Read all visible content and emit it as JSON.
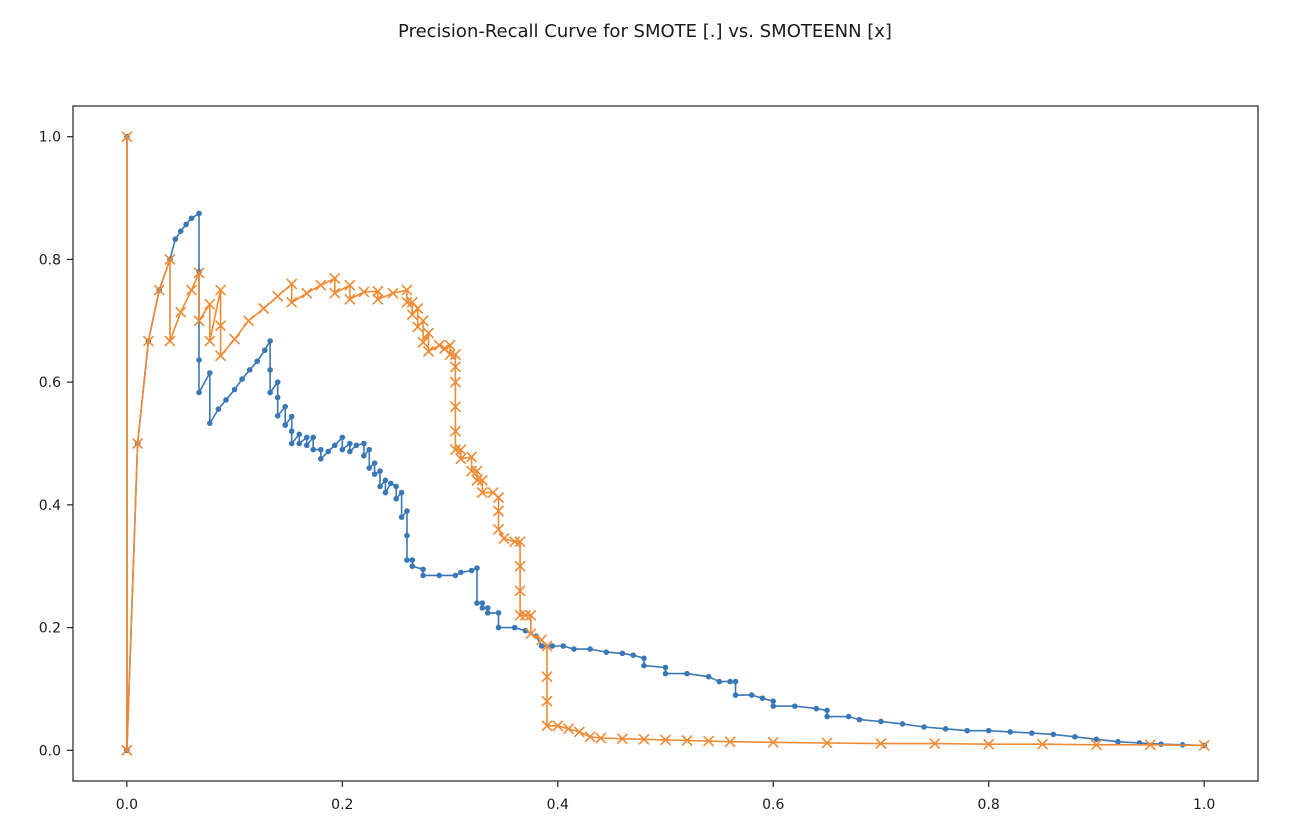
{
  "chart_data": {
    "type": "line",
    "title": "Precision-Recall Curve for SMOTE [.] vs. SMOTEENN [x]",
    "xlabel": "",
    "ylabel": "",
    "xlim": [
      -0.05,
      1.05
    ],
    "ylim": [
      -0.05,
      1.05
    ],
    "xticks": [
      0.0,
      0.2,
      0.4,
      0.6,
      0.8,
      1.0
    ],
    "xtick_labels": [
      "0.0",
      "0.2",
      "0.4",
      "0.6",
      "0.8",
      "1.0"
    ],
    "yticks": [
      0.0,
      0.2,
      0.4,
      0.6,
      0.8,
      1.0
    ],
    "ytick_labels": [
      "0.0",
      "0.2",
      "0.4",
      "0.6",
      "0.8",
      "1.0"
    ],
    "grid": false,
    "legend": "none",
    "series": [
      {
        "marker": "dot",
        "color": "#3a78b5",
        "points": [
          [
            0.0,
            0.0
          ],
          [
            0.0,
            1.0
          ],
          [
            0.0,
            0.0
          ],
          [
            0.01,
            0.5
          ],
          [
            0.02,
            0.667
          ],
          [
            0.03,
            0.75
          ],
          [
            0.04,
            0.8
          ],
          [
            0.045,
            0.833
          ],
          [
            0.05,
            0.846
          ],
          [
            0.055,
            0.857
          ],
          [
            0.06,
            0.867
          ],
          [
            0.067,
            0.875
          ],
          [
            0.067,
            0.78
          ],
          [
            0.067,
            0.636
          ],
          [
            0.067,
            0.583
          ],
          [
            0.077,
            0.615
          ],
          [
            0.077,
            0.533
          ],
          [
            0.085,
            0.556
          ],
          [
            0.092,
            0.571
          ],
          [
            0.1,
            0.588
          ],
          [
            0.107,
            0.605
          ],
          [
            0.114,
            0.62
          ],
          [
            0.121,
            0.634
          ],
          [
            0.128,
            0.652
          ],
          [
            0.133,
            0.667
          ],
          [
            0.133,
            0.62
          ],
          [
            0.133,
            0.583
          ],
          [
            0.14,
            0.6
          ],
          [
            0.14,
            0.575
          ],
          [
            0.14,
            0.545
          ],
          [
            0.147,
            0.56
          ],
          [
            0.147,
            0.53
          ],
          [
            0.153,
            0.544
          ],
          [
            0.153,
            0.52
          ],
          [
            0.153,
            0.5
          ],
          [
            0.16,
            0.515
          ],
          [
            0.16,
            0.5
          ],
          [
            0.167,
            0.51
          ],
          [
            0.167,
            0.497
          ],
          [
            0.173,
            0.51
          ],
          [
            0.173,
            0.49
          ],
          [
            0.18,
            0.49
          ],
          [
            0.18,
            0.475
          ],
          [
            0.187,
            0.487
          ],
          [
            0.193,
            0.497
          ],
          [
            0.2,
            0.51
          ],
          [
            0.2,
            0.49
          ],
          [
            0.207,
            0.5
          ],
          [
            0.207,
            0.487
          ],
          [
            0.213,
            0.497
          ],
          [
            0.22,
            0.5
          ],
          [
            0.22,
            0.48
          ],
          [
            0.225,
            0.49
          ],
          [
            0.225,
            0.46
          ],
          [
            0.23,
            0.468
          ],
          [
            0.23,
            0.45
          ],
          [
            0.235,
            0.455
          ],
          [
            0.235,
            0.43
          ],
          [
            0.24,
            0.44
          ],
          [
            0.24,
            0.42
          ],
          [
            0.245,
            0.435
          ],
          [
            0.25,
            0.43
          ],
          [
            0.25,
            0.41
          ],
          [
            0.255,
            0.42
          ],
          [
            0.255,
            0.38
          ],
          [
            0.26,
            0.39
          ],
          [
            0.26,
            0.35
          ],
          [
            0.26,
            0.31
          ],
          [
            0.265,
            0.31
          ],
          [
            0.265,
            0.3
          ],
          [
            0.275,
            0.295
          ],
          [
            0.275,
            0.285
          ],
          [
            0.29,
            0.285
          ],
          [
            0.305,
            0.285
          ],
          [
            0.31,
            0.29
          ],
          [
            0.32,
            0.293
          ],
          [
            0.325,
            0.297
          ],
          [
            0.325,
            0.24
          ],
          [
            0.33,
            0.24
          ],
          [
            0.33,
            0.232
          ],
          [
            0.335,
            0.232
          ],
          [
            0.335,
            0.224
          ],
          [
            0.345,
            0.224
          ],
          [
            0.345,
            0.2
          ],
          [
            0.36,
            0.2
          ],
          [
            0.37,
            0.195
          ],
          [
            0.38,
            0.186
          ],
          [
            0.385,
            0.17
          ],
          [
            0.395,
            0.17
          ],
          [
            0.405,
            0.17
          ],
          [
            0.415,
            0.165
          ],
          [
            0.43,
            0.165
          ],
          [
            0.445,
            0.16
          ],
          [
            0.46,
            0.158
          ],
          [
            0.47,
            0.155
          ],
          [
            0.48,
            0.15
          ],
          [
            0.48,
            0.138
          ],
          [
            0.5,
            0.135
          ],
          [
            0.5,
            0.125
          ],
          [
            0.52,
            0.125
          ],
          [
            0.54,
            0.12
          ],
          [
            0.55,
            0.112
          ],
          [
            0.56,
            0.112
          ],
          [
            0.565,
            0.112
          ],
          [
            0.565,
            0.09
          ],
          [
            0.58,
            0.09
          ],
          [
            0.59,
            0.085
          ],
          [
            0.6,
            0.08
          ],
          [
            0.6,
            0.072
          ],
          [
            0.62,
            0.072
          ],
          [
            0.64,
            0.068
          ],
          [
            0.65,
            0.065
          ],
          [
            0.65,
            0.055
          ],
          [
            0.67,
            0.055
          ],
          [
            0.68,
            0.05
          ],
          [
            0.7,
            0.047
          ],
          [
            0.72,
            0.043
          ],
          [
            0.74,
            0.038
          ],
          [
            0.76,
            0.035
          ],
          [
            0.78,
            0.032
          ],
          [
            0.8,
            0.032
          ],
          [
            0.82,
            0.03
          ],
          [
            0.84,
            0.028
          ],
          [
            0.86,
            0.026
          ],
          [
            0.88,
            0.022
          ],
          [
            0.9,
            0.018
          ],
          [
            0.92,
            0.014
          ],
          [
            0.94,
            0.012
          ],
          [
            0.96,
            0.01
          ],
          [
            0.98,
            0.009
          ],
          [
            1.0,
            0.008
          ]
        ]
      },
      {
        "marker": "x",
        "color": "#ef8a35",
        "points": [
          [
            0.0,
            0.0
          ],
          [
            0.0,
            1.0
          ],
          [
            0.0,
            0.0
          ],
          [
            0.01,
            0.5
          ],
          [
            0.02,
            0.667
          ],
          [
            0.03,
            0.75
          ],
          [
            0.04,
            0.8
          ],
          [
            0.04,
            0.667
          ],
          [
            0.05,
            0.714
          ],
          [
            0.06,
            0.75
          ],
          [
            0.067,
            0.778
          ],
          [
            0.067,
            0.7
          ],
          [
            0.077,
            0.727
          ],
          [
            0.077,
            0.667
          ],
          [
            0.087,
            0.75
          ],
          [
            0.087,
            0.692
          ],
          [
            0.087,
            0.643
          ],
          [
            0.1,
            0.67
          ],
          [
            0.113,
            0.7
          ],
          [
            0.127,
            0.72
          ],
          [
            0.14,
            0.74
          ],
          [
            0.153,
            0.76
          ],
          [
            0.153,
            0.73
          ],
          [
            0.167,
            0.745
          ],
          [
            0.18,
            0.758
          ],
          [
            0.193,
            0.769
          ],
          [
            0.193,
            0.745
          ],
          [
            0.207,
            0.758
          ],
          [
            0.207,
            0.735
          ],
          [
            0.22,
            0.747
          ],
          [
            0.233,
            0.748
          ],
          [
            0.233,
            0.735
          ],
          [
            0.247,
            0.745
          ],
          [
            0.26,
            0.75
          ],
          [
            0.26,
            0.73
          ],
          [
            0.265,
            0.73
          ],
          [
            0.265,
            0.71
          ],
          [
            0.27,
            0.72
          ],
          [
            0.27,
            0.69
          ],
          [
            0.275,
            0.7
          ],
          [
            0.275,
            0.665
          ],
          [
            0.28,
            0.68
          ],
          [
            0.28,
            0.65
          ],
          [
            0.29,
            0.66
          ],
          [
            0.295,
            0.655
          ],
          [
            0.3,
            0.66
          ],
          [
            0.3,
            0.645
          ],
          [
            0.305,
            0.645
          ],
          [
            0.305,
            0.625
          ],
          [
            0.305,
            0.6
          ],
          [
            0.305,
            0.56
          ],
          [
            0.305,
            0.52
          ],
          [
            0.305,
            0.49
          ],
          [
            0.31,
            0.49
          ],
          [
            0.31,
            0.475
          ],
          [
            0.32,
            0.478
          ],
          [
            0.32,
            0.455
          ],
          [
            0.325,
            0.455
          ],
          [
            0.325,
            0.44
          ],
          [
            0.33,
            0.44
          ],
          [
            0.33,
            0.42
          ],
          [
            0.34,
            0.42
          ],
          [
            0.345,
            0.412
          ],
          [
            0.345,
            0.39
          ],
          [
            0.345,
            0.36
          ],
          [
            0.35,
            0.345
          ],
          [
            0.36,
            0.34
          ],
          [
            0.365,
            0.34
          ],
          [
            0.365,
            0.3
          ],
          [
            0.365,
            0.26
          ],
          [
            0.365,
            0.22
          ],
          [
            0.37,
            0.22
          ],
          [
            0.375,
            0.22
          ],
          [
            0.375,
            0.19
          ],
          [
            0.385,
            0.18
          ],
          [
            0.39,
            0.17
          ],
          [
            0.39,
            0.12
          ],
          [
            0.39,
            0.08
          ],
          [
            0.39,
            0.04
          ],
          [
            0.4,
            0.04
          ],
          [
            0.41,
            0.035
          ],
          [
            0.42,
            0.03
          ],
          [
            0.43,
            0.022
          ],
          [
            0.44,
            0.02
          ],
          [
            0.46,
            0.019
          ],
          [
            0.48,
            0.018
          ],
          [
            0.5,
            0.017
          ],
          [
            0.52,
            0.016
          ],
          [
            0.54,
            0.015
          ],
          [
            0.56,
            0.014
          ],
          [
            0.6,
            0.013
          ],
          [
            0.65,
            0.012
          ],
          [
            0.7,
            0.011
          ],
          [
            0.75,
            0.011
          ],
          [
            0.8,
            0.01
          ],
          [
            0.85,
            0.01
          ],
          [
            0.9,
            0.009
          ],
          [
            0.95,
            0.009
          ],
          [
            1.0,
            0.008
          ]
        ]
      }
    ]
  }
}
